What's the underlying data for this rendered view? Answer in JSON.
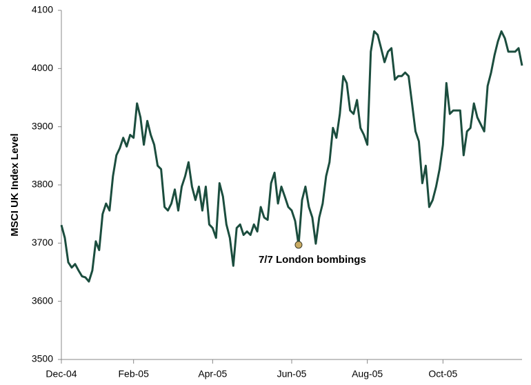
{
  "chart_data": {
    "type": "line",
    "ylabel": "MSCI UK Index Level",
    "categories": [
      "Dec-04",
      null,
      null,
      null,
      null,
      null,
      null,
      null,
      null,
      null,
      null,
      null,
      null,
      null,
      null,
      null,
      null,
      null,
      null,
      null,
      null,
      "Feb-05",
      null,
      null,
      null,
      null,
      null,
      null,
      null,
      null,
      null,
      null,
      null,
      null,
      null,
      null,
      null,
      null,
      null,
      null,
      null,
      null,
      null,
      null,
      "Apr-05",
      null,
      null,
      null,
      null,
      null,
      null,
      null,
      null,
      null,
      null,
      null,
      null,
      null,
      null,
      null,
      null,
      null,
      null,
      null,
      null,
      null,
      null,
      "Jun-05",
      null,
      null,
      null,
      null,
      null,
      null,
      null,
      null,
      null,
      null,
      null,
      null,
      null,
      null,
      null,
      null,
      null,
      null,
      null,
      null,
      null,
      "Aug-05",
      null,
      null,
      null,
      null,
      null,
      null,
      null,
      null,
      null,
      null,
      null,
      null,
      null,
      null,
      null,
      null,
      null,
      null,
      null,
      null,
      null,
      "Oct-05",
      null,
      null,
      null,
      null,
      null,
      null,
      null,
      null,
      null,
      null,
      null,
      null,
      null,
      null,
      null,
      null,
      null,
      null,
      null,
      null,
      null,
      null,
      null
    ],
    "values": [
      3731,
      3709,
      3667,
      3658,
      3664,
      3653,
      3643,
      3641,
      3634,
      3653,
      3703,
      3688,
      3750,
      3768,
      3756,
      3815,
      3851,
      3863,
      3881,
      3866,
      3886,
      3881,
      3940,
      3916,
      3869,
      3910,
      3886,
      3869,
      3833,
      3827,
      3762,
      3756,
      3768,
      3792,
      3756,
      3797,
      3815,
      3839,
      3797,
      3774,
      3797,
      3756,
      3797,
      3732,
      3726,
      3709,
      3803,
      3780,
      3732,
      3709,
      3661,
      3726,
      3732,
      3714,
      3720,
      3714,
      3732,
      3720,
      3762,
      3744,
      3740,
      3803,
      3821,
      3768,
      3797,
      3780,
      3762,
      3756,
      3738,
      3697,
      3774,
      3797,
      3762,
      3744,
      3699,
      3744,
      3768,
      3815,
      3839,
      3898,
      3881,
      3922,
      3987,
      3975,
      3928,
      3922,
      3946,
      3898,
      3886,
      3869,
      4029,
      4064,
      4058,
      4035,
      4011,
      4029,
      4035,
      3981,
      3987,
      3987,
      3993,
      3987,
      3940,
      3892,
      3875,
      3803,
      3833,
      3762,
      3774,
      3797,
      3827,
      3869,
      3975,
      3922,
      3928,
      3928,
      3928,
      3851,
      3892,
      3898,
      3940,
      3916,
      3904,
      3892,
      3970,
      3993,
      4023,
      4047,
      4064,
      4052,
      4029,
      4029,
      4029,
      4035,
      4005
    ],
    "color": "#1b4d3e",
    "ylim": [
      3500,
      4100
    ],
    "yticks": [
      3500,
      3600,
      3700,
      3800,
      3900,
      4000,
      4100
    ],
    "grid": false,
    "annotation": {
      "text": "7/7 London bombings",
      "index": 69
    }
  }
}
